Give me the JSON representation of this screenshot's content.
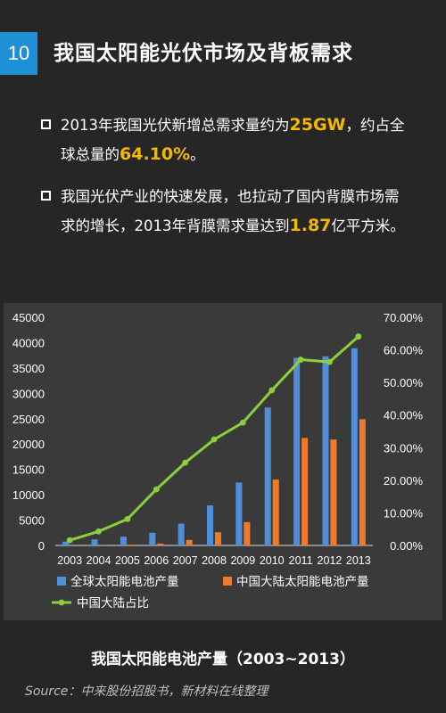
{
  "header": {
    "page_number": "10",
    "title": "我国太阳能光伏市场及背板需求"
  },
  "bullets": {
    "b1": {
      "pre": "2013年我国光伏新增总需求量约为",
      "v1": "25GW",
      "mid": "，约占全球总量的",
      "v2": "64.10%",
      "post": "。"
    },
    "b2": {
      "pre": "我国光伏产业的快速发展，也拉动了国内背膜市场需求的增长，2013年背膜需求量达到",
      "v1": "1.87",
      "post": "亿平方米。"
    }
  },
  "colors": {
    "highlight": "#f5b800",
    "global_bar": "#4f8ed8",
    "china_bar": "#ef7b2a",
    "ratio_line": "#8ccf3a",
    "page_badge": "#1f8fd6"
  },
  "chart_data": {
    "type": "bar",
    "categories": [
      "2003",
      "2004",
      "2005",
      "2006",
      "2007",
      "2008",
      "2009",
      "2010",
      "2011",
      "2012",
      "2013"
    ],
    "series": [
      {
        "name": "全球太阳能电池产量",
        "type": "bar",
        "axis": "left",
        "values": [
          750,
          1200,
          1750,
          2500,
          4300,
          7900,
          12400,
          27200,
          37000,
          37300,
          38900
        ]
      },
      {
        "name": "中国大陆太阳能电池产量",
        "type": "bar",
        "axis": "left",
        "values": [
          12,
          35,
          150,
          370,
          1090,
          2600,
          4600,
          13000,
          21200,
          20900,
          24900
        ]
      },
      {
        "name": "中国大陆占比",
        "type": "line",
        "axis": "right",
        "values": [
          0.016,
          0.043,
          0.081,
          0.172,
          0.254,
          0.325,
          0.377,
          0.476,
          0.57,
          0.563,
          0.641
        ]
      }
    ],
    "ylim_left": [
      0,
      45000
    ],
    "yticks_left": [
      "0",
      "5000",
      "10000",
      "15000",
      "20000",
      "25000",
      "30000",
      "35000",
      "40000",
      "45000"
    ],
    "ylim_right": [
      0,
      0.7
    ],
    "yticks_right": [
      "0.00%",
      "10.00%",
      "20.00%",
      "30.00%",
      "40.00%",
      "50.00%",
      "60.00%",
      "70.00%"
    ],
    "legend_position": "bottom",
    "grid": false
  },
  "caption": "我国太阳能电池产量（2003~2013）",
  "source": "Source：中来股份招股书，新材料在线整理"
}
